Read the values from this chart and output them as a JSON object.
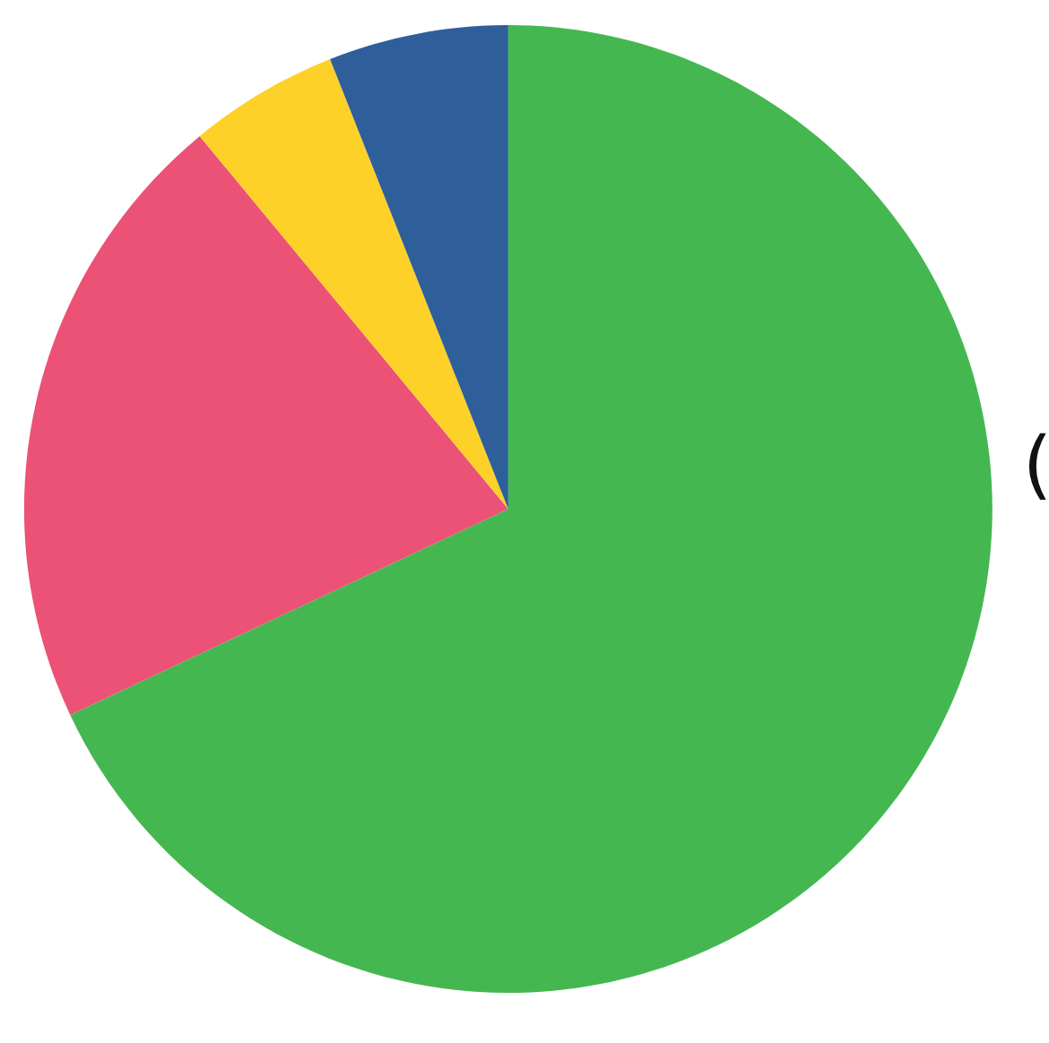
{
  "chart_data": {
    "type": "pie",
    "categories": [
      null,
      null,
      null,
      null
    ],
    "values": [
      68,
      21,
      5,
      6
    ],
    "colors": [
      "#45b751",
      "#ec5276",
      "#fdd128",
      "#2e5f9b"
    ],
    "annotations": [
      "("
    ]
  }
}
